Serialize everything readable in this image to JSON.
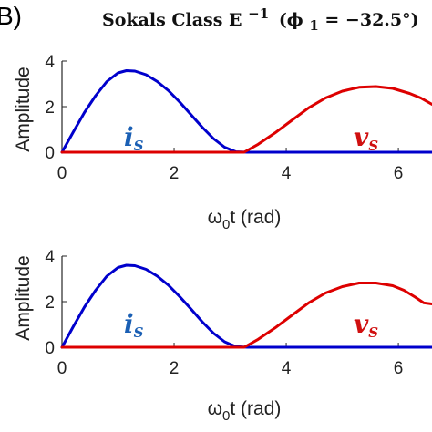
{
  "panel_letter": "B)",
  "title": {
    "text": "Sokals Class E",
    "superscript": "−1",
    "phi_label": "(ϕ",
    "phi_sub": "1",
    "phi_value": " = −32.5°)"
  },
  "colors": {
    "i_s": "#0000cc",
    "v_s": "#dd0000",
    "i_s_label": "#1a5fb4",
    "v_s_label": "#d01010",
    "axis": "#262626"
  },
  "chart_data": [
    {
      "type": "line",
      "panel": "top",
      "xlabel": "ω0t (rad)",
      "xlabel_main": "ω",
      "xlabel_sub": "0",
      "xlabel_rest": "t (rad)",
      "ylabel": "Amplitude",
      "xlim": [
        0,
        6.6
      ],
      "ylim": [
        0,
        4
      ],
      "xticks": [
        "0",
        "2",
        "4",
        "6"
      ],
      "yticks": [
        "0",
        "2",
        "4"
      ],
      "grid": false,
      "series": [
        {
          "name": "iS",
          "label_main": "i",
          "label_sub": "S",
          "x": [
            0,
            0.2,
            0.4,
            0.6,
            0.8,
            1.0,
            1.15,
            1.3,
            1.5,
            1.7,
            1.9,
            2.1,
            2.3,
            2.5,
            2.7,
            2.9,
            3.1,
            3.3,
            4.0,
            5.0,
            6.0,
            6.6
          ],
          "y": [
            0,
            0.88,
            1.74,
            2.48,
            3.1,
            3.48,
            3.58,
            3.56,
            3.4,
            3.1,
            2.7,
            2.2,
            1.65,
            1.1,
            0.6,
            0.22,
            0.02,
            0,
            0,
            0,
            0,
            0
          ]
        },
        {
          "name": "vS",
          "label_main": "v",
          "label_sub": "S",
          "x": [
            0,
            1.0,
            2.0,
            3.0,
            3.25,
            3.5,
            3.8,
            4.1,
            4.4,
            4.7,
            5.0,
            5.3,
            5.6,
            5.9,
            6.2,
            6.4,
            6.6
          ],
          "y": [
            0,
            0,
            0,
            0,
            0,
            0.35,
            0.85,
            1.4,
            1.95,
            2.38,
            2.68,
            2.85,
            2.88,
            2.8,
            2.58,
            2.38,
            2.1
          ]
        }
      ]
    },
    {
      "type": "line",
      "panel": "bottom",
      "xlabel": "ω0t (rad)",
      "xlabel_main": "ω",
      "xlabel_sub": "0",
      "xlabel_rest": "t (rad)",
      "ylabel": "Amplitude",
      "xlim": [
        0,
        6.6
      ],
      "ylim": [
        0,
        4
      ],
      "xticks": [
        "0",
        "2",
        "4",
        "6"
      ],
      "yticks": [
        "0",
        "2",
        "4"
      ],
      "grid": false,
      "series": [
        {
          "name": "iS",
          "label_main": "i",
          "label_sub": "S",
          "x": [
            0,
            0.2,
            0.4,
            0.6,
            0.8,
            1.0,
            1.15,
            1.3,
            1.5,
            1.7,
            1.9,
            2.1,
            2.3,
            2.5,
            2.7,
            2.9,
            3.1,
            3.3,
            4.0,
            5.0,
            6.0,
            6.6
          ],
          "y": [
            0,
            0.9,
            1.76,
            2.5,
            3.12,
            3.5,
            3.6,
            3.58,
            3.42,
            3.12,
            2.72,
            2.22,
            1.68,
            1.12,
            0.62,
            0.24,
            0.03,
            0,
            0,
            0,
            0,
            0
          ]
        },
        {
          "name": "vS",
          "label_main": "v",
          "label_sub": "S",
          "x": [
            0,
            1.0,
            2.0,
            3.0,
            3.25,
            3.5,
            3.8,
            4.1,
            4.4,
            4.7,
            5.0,
            5.3,
            5.6,
            5.9,
            6.1,
            6.3,
            6.45,
            6.6
          ],
          "y": [
            0,
            0,
            0,
            0,
            0,
            0.35,
            0.85,
            1.4,
            1.95,
            2.38,
            2.66,
            2.82,
            2.82,
            2.7,
            2.5,
            2.2,
            1.95,
            1.9
          ]
        }
      ]
    }
  ]
}
